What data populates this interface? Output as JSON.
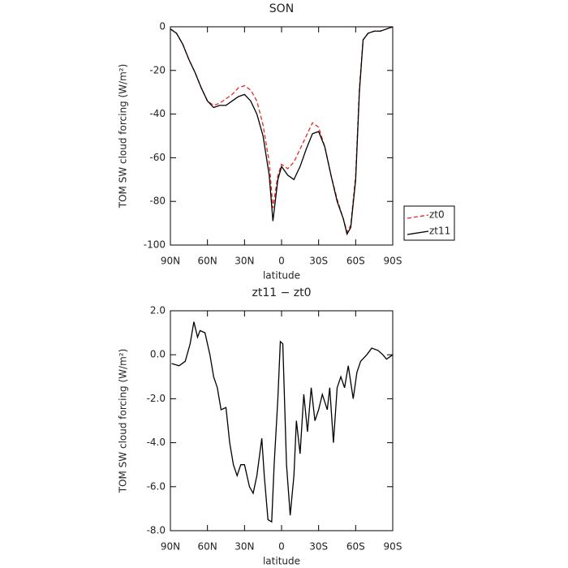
{
  "chart_data": [
    {
      "type": "line",
      "title": "SON",
      "xlabel": "latitude",
      "ylabel": "TOM SW cloud forcing (W/m²)",
      "x": [
        90,
        85,
        80,
        75,
        70,
        65,
        60,
        55,
        50,
        45,
        40,
        35,
        30,
        25,
        20,
        15,
        10,
        7,
        3,
        0,
        -5,
        -10,
        -15,
        -20,
        -25,
        -30,
        -35,
        -40,
        -45,
        -50,
        -53,
        -56,
        -60,
        -63,
        -66,
        -70,
        -75,
        -80,
        -85,
        -90
      ],
      "series": [
        {
          "name": "zt0",
          "color": "#e8281e",
          "dash": true,
          "values": [
            -1,
            -3,
            -8,
            -15,
            -21,
            -28,
            -34,
            -36,
            -35,
            -33,
            -31,
            -28,
            -27,
            -29,
            -34,
            -45,
            -62,
            -83,
            -68,
            -63,
            -65,
            -62,
            -56,
            -50,
            -44,
            -46,
            -55,
            -68,
            -79,
            -88,
            -94,
            -91,
            -68,
            -28,
            -6,
            -3,
            -2,
            -2,
            -1,
            0
          ]
        },
        {
          "name": "zt11",
          "color": "#000000",
          "dash": false,
          "values": [
            -1,
            -3,
            -8,
            -15,
            -21,
            -28,
            -34,
            -37,
            -36,
            -36,
            -34,
            -32,
            -31,
            -34,
            -40,
            -50,
            -68,
            -89,
            -70,
            -64,
            -68,
            -70,
            -64,
            -56,
            -49,
            -48,
            -55,
            -68,
            -80,
            -88,
            -95,
            -92,
            -70,
            -30,
            -6,
            -3,
            -2,
            -2,
            -1,
            0
          ]
        }
      ],
      "xlim": [
        90,
        -90
      ],
      "xticks": [
        {
          "value": 90,
          "label": "90N"
        },
        {
          "value": 60,
          "label": "60N"
        },
        {
          "value": 30,
          "label": "30N"
        },
        0,
        {
          "value": -30,
          "label": "30S"
        },
        {
          "value": -60,
          "label": "60S"
        },
        {
          "value": -90,
          "label": "90S"
        }
      ],
      "ylim": [
        -100,
        0
      ],
      "yticks": [
        -100,
        -80,
        -60,
        -40,
        -20,
        0
      ],
      "legend": "right"
    },
    {
      "type": "line",
      "title": "zt11 − zt0",
      "xlabel": "latitude",
      "ylabel": "TOM SW cloud forcing (W/m²)",
      "x": [
        89,
        83,
        78,
        74,
        71,
        68,
        66,
        62,
        58,
        55,
        52,
        49,
        45,
        42,
        39,
        36,
        33,
        30,
        26,
        23,
        20,
        16,
        14,
        11,
        8,
        6,
        3,
        1,
        -1,
        -4,
        -7,
        -10,
        -12,
        -15,
        -18,
        -21,
        -24,
        -27,
        -30,
        -33,
        -37,
        -39,
        -42,
        -45,
        -48,
        -51,
        -54,
        -58,
        -61,
        -64,
        -69,
        -73,
        -78,
        -82,
        -85,
        -90
      ],
      "values": [
        -0.4,
        -0.5,
        -0.3,
        0.5,
        1.5,
        0.8,
        1.1,
        1.0,
        0.0,
        -1.0,
        -1.5,
        -2.5,
        -2.4,
        -4.0,
        -5.0,
        -5.5,
        -5.0,
        -5.0,
        -6.0,
        -6.3,
        -5.5,
        -3.8,
        -5.5,
        -7.5,
        -7.6,
        -5.0,
        -2.0,
        0.6,
        0.5,
        -5.0,
        -7.3,
        -5.5,
        -3.0,
        -4.5,
        -1.8,
        -3.5,
        -1.5,
        -3.0,
        -2.5,
        -1.8,
        -2.5,
        -1.5,
        -4.0,
        -1.5,
        -1.0,
        -1.5,
        -0.5,
        -2.0,
        -0.8,
        -0.3,
        0.0,
        0.3,
        0.2,
        0.0,
        -0.2,
        0.0
      ],
      "color": "#000000",
      "xlim": [
        90,
        -90
      ],
      "xticks": [
        {
          "value": 90,
          "label": "90N"
        },
        {
          "value": 60,
          "label": "60N"
        },
        {
          "value": 30,
          "label": "30N"
        },
        0,
        {
          "value": -30,
          "label": "30S"
        },
        {
          "value": -60,
          "label": "60S"
        },
        {
          "value": -90,
          "label": "90S"
        }
      ],
      "ylim": [
        -8,
        2
      ],
      "yticks": [
        {
          "value": -8,
          "label": "-8.0"
        },
        {
          "value": -6,
          "label": "-6.0"
        },
        {
          "value": -4,
          "label": "-4.0"
        },
        {
          "value": -2,
          "label": "-2.0"
        },
        {
          "value": 0,
          "label": "0.0"
        },
        {
          "value": 2,
          "label": "2.0"
        }
      ]
    }
  ]
}
